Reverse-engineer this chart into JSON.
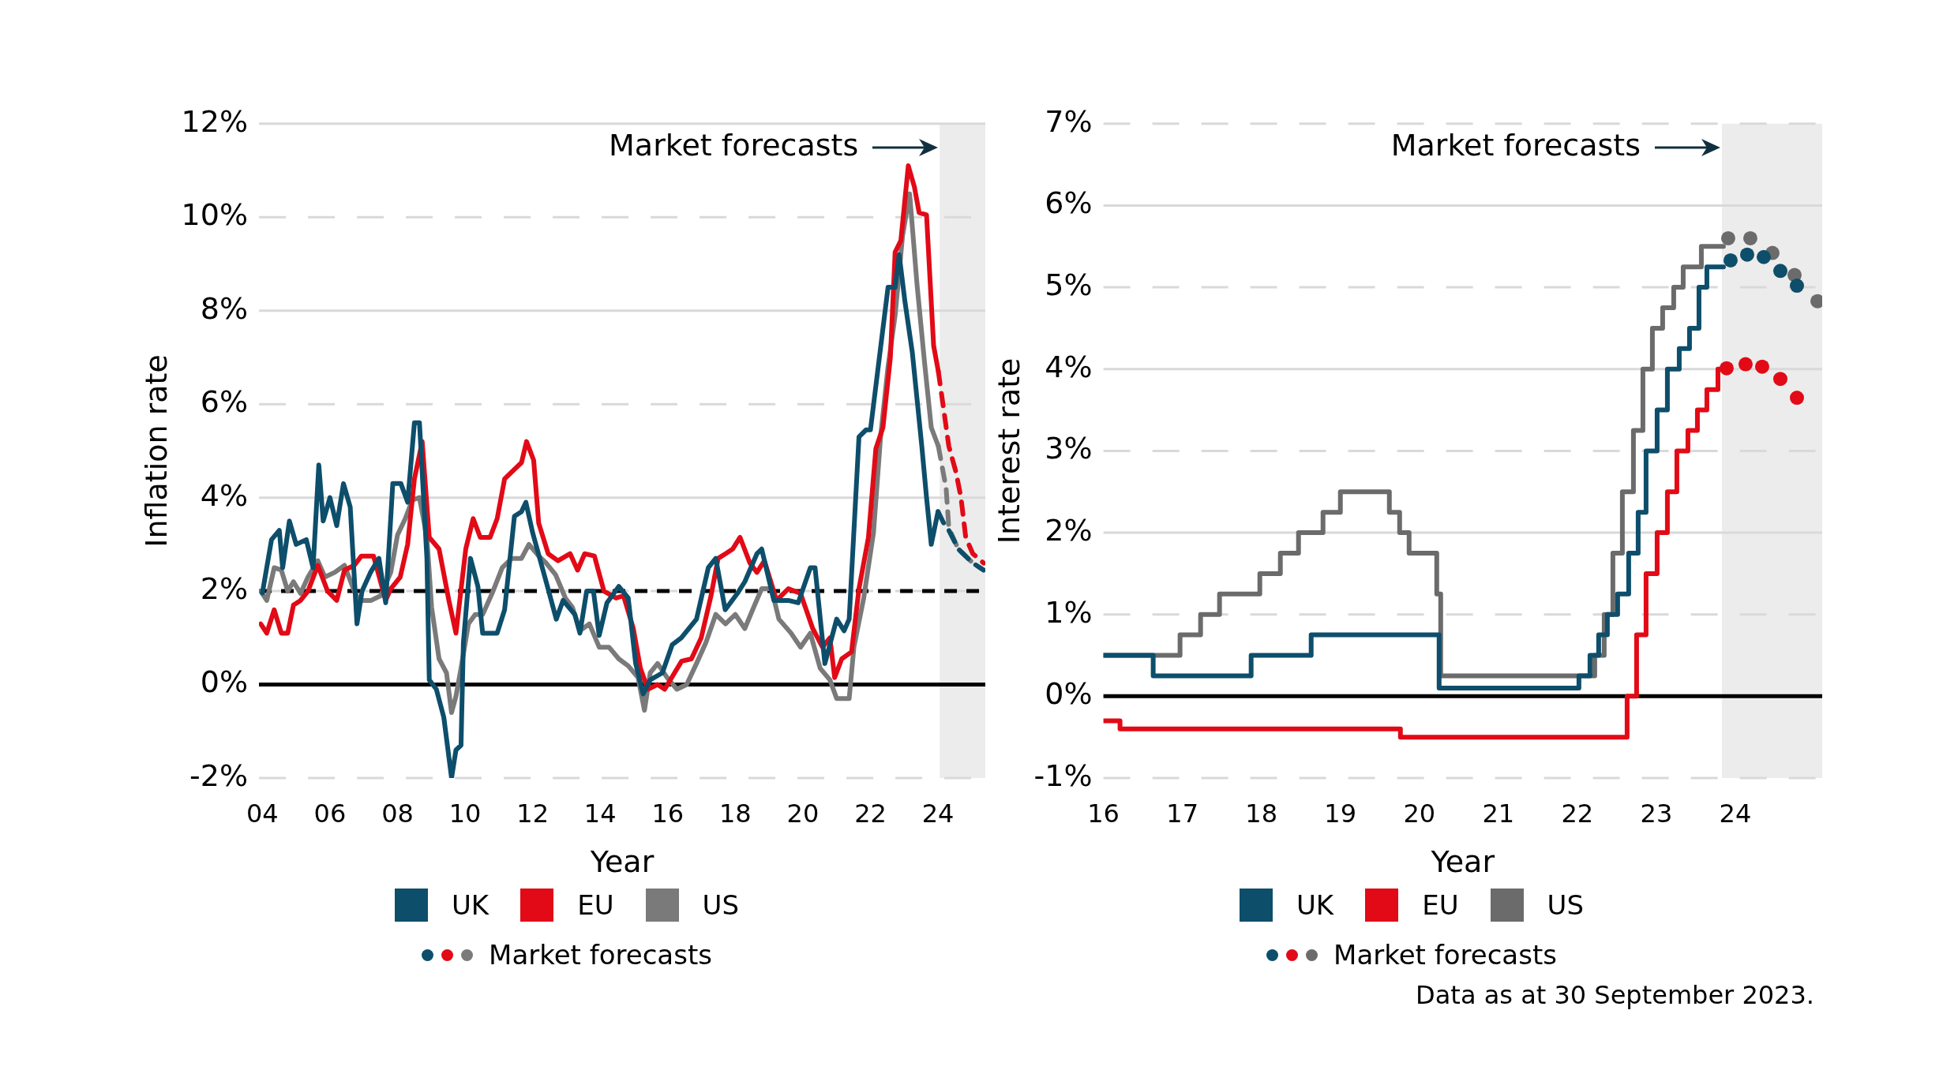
{
  "chart_data": [
    {
      "type": "line",
      "xlabel": "Year",
      "ylabel": "Inflation rate",
      "xlim": [
        2003.9,
        2025.4
      ],
      "ylim": [
        -2,
        12
      ],
      "xticks": [
        {
          "value": 2004,
          "label": "04"
        },
        {
          "value": 2006,
          "label": "06"
        },
        {
          "value": 2008,
          "label": "08"
        },
        {
          "value": 2010,
          "label": "10"
        },
        {
          "value": 2012,
          "label": "12"
        },
        {
          "value": 2014,
          "label": "14"
        },
        {
          "value": 2016,
          "label": "16"
        },
        {
          "value": 2018,
          "label": "18"
        },
        {
          "value": 2020,
          "label": "20"
        },
        {
          "value": 2022,
          "label": "22"
        },
        {
          "value": 2024,
          "label": "24"
        }
      ],
      "yticks": [
        {
          "value": -2,
          "label": "-2%"
        },
        {
          "value": 0,
          "label": "0%"
        },
        {
          "value": 2,
          "label": "2%"
        },
        {
          "value": 4,
          "label": "4%"
        },
        {
          "value": 6,
          "label": "6%"
        },
        {
          "value": 8,
          "label": "8%"
        },
        {
          "value": 10,
          "label": "10%"
        },
        {
          "value": 12,
          "label": "12%"
        }
      ],
      "grid": "y",
      "legend": "bottom",
      "ref_lines": [
        {
          "axis": "y",
          "value": 2,
          "color": "#000000",
          "line_style": "dashed"
        },
        {
          "axis": "y",
          "value": 0,
          "color": "#000000",
          "line_style": "solid"
        }
      ],
      "bands": [
        {
          "axis": "x",
          "from": 2024.05,
          "to": 2025.4,
          "label": "Market forecasts",
          "color": "#ececec"
        }
      ],
      "series": [
        {
          "name": "UK",
          "color": "#0d4e6b",
          "x": [
            2004.0,
            2004.27,
            2004.5,
            2004.6,
            2004.8,
            2005.0,
            2005.3,
            2005.5,
            2005.67,
            2005.8,
            2006.0,
            2006.2,
            2006.4,
            2006.6,
            2006.8,
            2006.95,
            2007.2,
            2007.45,
            2007.65,
            2007.86,
            2008.1,
            2008.3,
            2008.5,
            2008.65,
            2008.87,
            2008.94,
            2009.15,
            2009.37,
            2009.6,
            2009.73,
            2009.88,
            2009.95,
            2010.16,
            2010.38,
            2010.52,
            2010.95,
            2011.17,
            2011.46,
            2011.67,
            2011.8,
            2012.0,
            2012.4,
            2012.7,
            2012.9,
            2013.25,
            2013.4,
            2013.6,
            2013.8,
            2013.97,
            2014.2,
            2014.55,
            2014.83,
            2015.05,
            2015.27,
            2015.48,
            2015.84,
            2016.13,
            2016.4,
            2016.85,
            2017.2,
            2017.42,
            2017.7,
            2018.06,
            2018.28,
            2018.64,
            2018.78,
            2019.14,
            2019.57,
            2019.86,
            2020.22,
            2020.36,
            2020.65,
            2021.0,
            2021.22,
            2021.37,
            2021.66,
            2021.87,
            2022.0,
            2022.23,
            2022.52,
            2022.73,
            2022.85,
            2023.02,
            2023.24,
            2023.52,
            2023.66,
            2023.8,
            2024.0
          ],
          "values": [
            1.96,
            3.1,
            3.3,
            2.5,
            3.5,
            3.0,
            3.1,
            2.5,
            4.7,
            3.5,
            4.0,
            3.4,
            4.3,
            3.8,
            1.3,
            2.0,
            2.4,
            2.7,
            1.75,
            4.3,
            4.3,
            3.9,
            5.6,
            5.6,
            2.7,
            0.1,
            -0.1,
            -0.7,
            -2.0,
            -1.4,
            -1.3,
            0.9,
            2.7,
            2.1,
            1.1,
            1.1,
            1.6,
            3.6,
            3.7,
            3.9,
            3.25,
            2.2,
            1.4,
            1.8,
            1.5,
            1.1,
            2.0,
            2.0,
            1.05,
            1.75,
            2.1,
            1.85,
            0.45,
            -0.2,
            0.1,
            0.25,
            0.85,
            1.0,
            1.4,
            2.5,
            2.7,
            1.6,
            1.95,
            2.2,
            2.8,
            2.9,
            1.8,
            1.8,
            1.75,
            2.5,
            2.5,
            0.45,
            1.4,
            1.15,
            1.4,
            5.3,
            5.45,
            5.45,
            6.8,
            8.5,
            8.5,
            9.2,
            8.2,
            7.1,
            5.1,
            4.0,
            3.0,
            3.7
          ]
        },
        {
          "name": "EU",
          "color": "#e20a16",
          "x": [
            2003.95,
            2004.13,
            2004.35,
            2004.56,
            2004.75,
            2004.92,
            2005.13,
            2005.35,
            2005.64,
            2005.93,
            2006.2,
            2006.43,
            2006.72,
            2006.93,
            2007.29,
            2007.65,
            2007.8,
            2008.08,
            2008.3,
            2008.5,
            2008.73,
            2008.94,
            2009.23,
            2009.52,
            2009.73,
            2010.02,
            2010.24,
            2010.45,
            2010.74,
            2010.95,
            2011.17,
            2011.38,
            2011.67,
            2011.82,
            2012.03,
            2012.18,
            2012.46,
            2012.75,
            2013.11,
            2013.33,
            2013.54,
            2013.83,
            2014.11,
            2014.47,
            2014.69,
            2014.98,
            2015.19,
            2015.41,
            2015.7,
            2015.91,
            2016.2,
            2016.41,
            2016.7,
            2016.99,
            2017.28,
            2017.49,
            2017.71,
            2017.92,
            2018.14,
            2018.43,
            2018.64,
            2018.86,
            2019.22,
            2019.57,
            2019.93,
            2020.29,
            2020.58,
            2020.8,
            2020.94,
            2021.15,
            2021.44,
            2021.66,
            2021.94,
            2022.16,
            2022.37,
            2022.59,
            2022.73,
            2022.9,
            2023.12,
            2023.3,
            2023.44,
            2023.66,
            2023.87,
            2024.01
          ],
          "values": [
            1.3,
            1.1,
            1.6,
            1.1,
            1.1,
            1.7,
            1.8,
            2.0,
            2.55,
            2.0,
            1.8,
            2.45,
            2.55,
            2.75,
            2.75,
            1.8,
            2.05,
            2.3,
            3.0,
            4.4,
            5.2,
            3.15,
            2.9,
            1.8,
            1.1,
            2.9,
            3.55,
            3.15,
            3.15,
            3.55,
            4.4,
            4.55,
            4.75,
            5.2,
            4.8,
            3.45,
            2.8,
            2.65,
            2.8,
            2.45,
            2.8,
            2.75,
            2.0,
            1.85,
            1.9,
            1.2,
            0.35,
            -0.1,
            0.0,
            -0.1,
            0.25,
            0.5,
            0.55,
            1.0,
            1.9,
            2.7,
            2.8,
            2.9,
            3.15,
            2.6,
            2.4,
            2.65,
            1.8,
            2.05,
            1.95,
            1.2,
            0.8,
            1.0,
            0.15,
            0.55,
            0.7,
            2.05,
            3.15,
            5.05,
            5.5,
            7.0,
            9.25,
            9.5,
            11.1,
            10.65,
            10.1,
            10.05,
            7.25,
            6.7
          ]
        },
        {
          "name": "US",
          "color": "#7a7a7a",
          "x": [
            2003.95,
            2004.13,
            2004.35,
            2004.56,
            2004.75,
            2004.92,
            2005.13,
            2005.35,
            2005.64,
            2005.85,
            2006.14,
            2006.43,
            2006.72,
            2006.86,
            2007.22,
            2007.5,
            2007.8,
            2008.0,
            2008.23,
            2008.44,
            2008.65,
            2008.87,
            2009.01,
            2009.23,
            2009.45,
            2009.6,
            2009.73,
            2009.88,
            2010.1,
            2010.3,
            2010.52,
            2010.8,
            2011.1,
            2011.38,
            2011.67,
            2011.89,
            2012.18,
            2012.4,
            2012.68,
            2012.97,
            2013.18,
            2013.4,
            2013.68,
            2013.97,
            2014.26,
            2014.55,
            2014.83,
            2015.12,
            2015.31,
            2015.48,
            2015.7,
            2015.98,
            2016.27,
            2016.56,
            2016.85,
            2017.13,
            2017.42,
            2017.71,
            2018.0,
            2018.28,
            2018.57,
            2018.78,
            2019.07,
            2019.29,
            2019.65,
            2019.93,
            2020.22,
            2020.51,
            2020.8,
            2021.0,
            2021.37,
            2021.51,
            2021.8,
            2022.09,
            2022.3,
            2022.52,
            2022.73,
            2022.95,
            2023.16,
            2023.38,
            2023.6,
            2023.8,
            2024.01
          ],
          "values": [
            2.0,
            1.8,
            2.5,
            2.45,
            2.0,
            2.2,
            1.95,
            2.3,
            2.65,
            2.3,
            2.4,
            2.55,
            2.0,
            1.8,
            1.8,
            1.9,
            2.4,
            3.2,
            3.55,
            3.95,
            4.0,
            3.15,
            1.65,
            0.55,
            0.25,
            -0.6,
            -0.25,
            0.35,
            1.3,
            1.5,
            1.5,
            1.95,
            2.5,
            2.7,
            2.7,
            3.0,
            2.75,
            2.6,
            2.35,
            1.85,
            1.65,
            1.15,
            1.3,
            0.8,
            0.8,
            0.55,
            0.4,
            0.15,
            -0.55,
            0.25,
            0.45,
            0.15,
            -0.1,
            0.0,
            0.45,
            0.9,
            1.5,
            1.3,
            1.5,
            1.2,
            1.7,
            2.05,
            2.05,
            1.4,
            1.1,
            0.8,
            1.1,
            0.35,
            0.1,
            -0.3,
            -0.3,
            0.8,
            1.85,
            3.25,
            5.3,
            6.8,
            7.9,
            9.6,
            10.5,
            8.55,
            6.9,
            5.5,
            5.1
          ]
        },
        {
          "color": "#0d4e6b",
          "line_style": "dashed",
          "x": [
            2024.0,
            2024.24,
            2024.32,
            2024.6,
            2025.03,
            2025.35
          ],
          "values": [
            3.7,
            3.35,
            3.3,
            2.9,
            2.6,
            2.45
          ]
        },
        {
          "color": "#e20a16",
          "line_style": "dashed",
          "x": [
            2024.01,
            2024.32,
            2024.53,
            2024.68,
            2024.82,
            2025.03,
            2025.35
          ],
          "values": [
            6.7,
            5.1,
            4.55,
            4.0,
            3.15,
            2.8,
            2.6
          ]
        },
        {
          "name": "Market forecasts",
          "color": "#7a7a7a",
          "line_style": "dashed",
          "x": [
            2024.01,
            2024.24,
            2024.32,
            2024.6,
            2025.03,
            2025.35
          ],
          "values": [
            5.1,
            4.2,
            3.35,
            2.9,
            2.6,
            2.45
          ]
        }
      ]
    },
    {
      "type": "step",
      "xlabel": "Year",
      "ylabel": "Interest rate",
      "xlim": [
        2016,
        2025.1
      ],
      "ylim": [
        -1,
        7
      ],
      "xticks": [
        {
          "value": 2016,
          "label": "16"
        },
        {
          "value": 2017,
          "label": "17"
        },
        {
          "value": 2018,
          "label": "18"
        },
        {
          "value": 2019,
          "label": "19"
        },
        {
          "value": 2020,
          "label": "20"
        },
        {
          "value": 2021,
          "label": "21"
        },
        {
          "value": 2022,
          "label": "22"
        },
        {
          "value": 2023,
          "label": "23"
        },
        {
          "value": 2024,
          "label": "24"
        }
      ],
      "yticks": [
        {
          "value": -1,
          "label": "-1%"
        },
        {
          "value": 0,
          "label": "0%"
        },
        {
          "value": 1,
          "label": "1%"
        },
        {
          "value": 2,
          "label": "2%"
        },
        {
          "value": 3,
          "label": "3%"
        },
        {
          "value": 4,
          "label": "4%"
        },
        {
          "value": 5,
          "label": "5%"
        },
        {
          "value": 6,
          "label": "6%"
        },
        {
          "value": 7,
          "label": "7%"
        }
      ],
      "grid": "y",
      "legend": "bottom",
      "ref_lines": [
        {
          "axis": "y",
          "value": 0,
          "color": "#000000",
          "line_style": "solid"
        }
      ],
      "bands": [
        {
          "axis": "x",
          "from": 2023.83,
          "to": 2025.1,
          "label": "Market forecasts",
          "color": "#ececec"
        }
      ],
      "annotations": [
        "Data as at 30 September 2023."
      ],
      "series": [
        {
          "name": "UK",
          "color": "#0d4e6b",
          "x": [
            2016.0,
            2016.63,
            2017.87,
            2018.63,
            2020.25,
            2022.02,
            2022.16,
            2022.27,
            2022.38,
            2022.51,
            2022.65,
            2022.77,
            2022.87,
            2023.01,
            2023.14,
            2023.29,
            2023.42,
            2023.54,
            2023.64,
            2023.85
          ],
          "values": [
            0.5,
            0.25,
            0.5,
            0.75,
            0.1,
            0.25,
            0.5,
            0.75,
            1.0,
            1.25,
            1.75,
            2.25,
            3.0,
            3.5,
            4.0,
            4.25,
            4.5,
            5.0,
            5.25,
            5.25
          ]
        },
        {
          "name": "EU",
          "color": "#e20a16",
          "x": [
            2016.0,
            2016.21,
            2019.76,
            2022.63,
            2022.75,
            2022.87,
            2023.01,
            2023.14,
            2023.26,
            2023.4,
            2023.52,
            2023.64,
            2023.78,
            2023.85
          ],
          "values": [
            -0.3,
            -0.4,
            -0.5,
            0.0,
            0.75,
            1.5,
            2.0,
            2.5,
            3.0,
            3.25,
            3.5,
            3.75,
            4.0,
            4.0
          ]
        },
        {
          "name": "US",
          "color": "#6b6b6b",
          "x": [
            2016.0,
            2016.97,
            2017.23,
            2017.47,
            2017.98,
            2018.24,
            2018.47,
            2018.78,
            2019.0,
            2019.62,
            2019.75,
            2019.87,
            2020.22,
            2020.27,
            2022.22,
            2022.34,
            2022.45,
            2022.57,
            2022.71,
            2022.83,
            2022.95,
            2023.08,
            2023.22,
            2023.34,
            2023.57,
            2023.85
          ],
          "values": [
            0.5,
            0.75,
            1.0,
            1.25,
            1.5,
            1.75,
            2.0,
            2.25,
            2.5,
            2.25,
            2.0,
            1.75,
            1.25,
            0.25,
            0.5,
            1.0,
            1.75,
            2.5,
            3.25,
            4.0,
            4.5,
            4.75,
            5.0,
            5.25,
            5.5,
            5.5
          ]
        },
        {
          "type": "scatter",
          "marker": "circle",
          "color": "#0d4e6b",
          "x": [
            2023.94,
            2024.15,
            2024.36,
            2024.57,
            2024.78
          ],
          "values": [
            5.33,
            5.4,
            5.37,
            5.2,
            5.02
          ]
        },
        {
          "type": "scatter",
          "marker": "circle",
          "color": "#e20a16",
          "x": [
            2023.89,
            2024.13,
            2024.34,
            2024.57,
            2024.78
          ],
          "values": [
            4.01,
            4.06,
            4.03,
            3.88,
            3.65
          ]
        },
        {
          "name": "Market forecasts",
          "type": "scatter",
          "marker": "circle",
          "color": "#6b6b6b",
          "x": [
            2023.91,
            2024.19,
            2024.47,
            2024.75,
            2025.04
          ],
          "values": [
            5.6,
            5.6,
            5.42,
            5.15,
            4.83
          ]
        }
      ]
    }
  ]
}
